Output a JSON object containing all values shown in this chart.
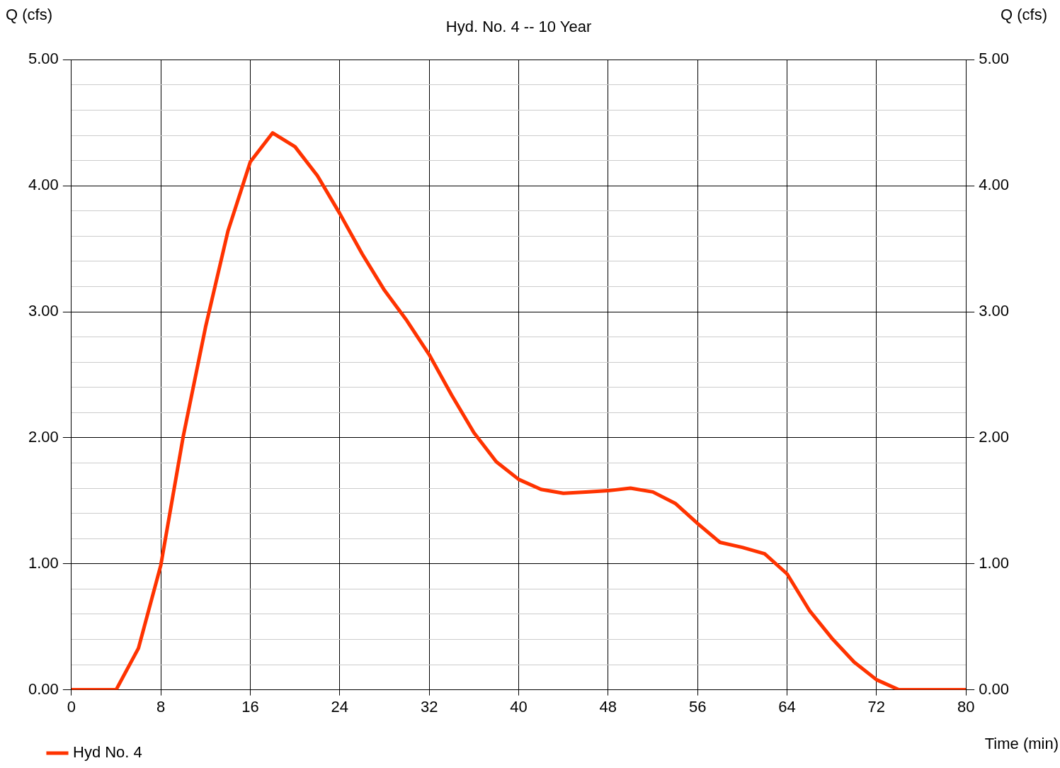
{
  "chart_data": {
    "type": "line",
    "title": "Hyd. No. 4 -- 10 Year",
    "xlabel": "Time (min)",
    "ylabel": "Q (cfs)",
    "y2label": "Q (cfs)",
    "x": [
      0,
      2,
      4,
      6,
      8,
      10,
      12,
      14,
      16,
      18,
      20,
      22,
      24,
      26,
      28,
      30,
      32,
      34,
      36,
      38,
      40,
      42,
      44,
      46,
      48,
      50,
      52,
      54,
      56,
      58,
      60,
      62,
      64,
      66,
      68,
      70,
      72,
      74,
      76,
      78,
      80
    ],
    "series": [
      {
        "name": "Hyd No. 4",
        "color": "#ff3300",
        "values": [
          0,
          0,
          0,
          0.33,
          0.99,
          2.01,
          2.88,
          3.64,
          4.19,
          4.42,
          4.31,
          4.08,
          3.78,
          3.46,
          3.17,
          2.93,
          2.66,
          2.34,
          2.04,
          1.81,
          1.67,
          1.59,
          1.56,
          1.57,
          1.58,
          1.6,
          1.57,
          1.48,
          1.32,
          1.17,
          1.13,
          1.08,
          0.92,
          0.63,
          0.41,
          0.22,
          0.08,
          0,
          0,
          0,
          0
        ]
      }
    ],
    "xlim": [
      0,
      80
    ],
    "xticks": [
      0,
      8,
      16,
      24,
      32,
      40,
      48,
      56,
      64,
      72,
      80
    ],
    "ylim": [
      0,
      5
    ],
    "yticks": [
      {
        "value": 0,
        "label": "0.00"
      },
      {
        "value": 0.2,
        "label": null
      },
      {
        "value": 0.4,
        "label": null
      },
      {
        "value": 0.6,
        "label": null
      },
      {
        "value": 0.8,
        "label": null
      },
      {
        "value": 1,
        "label": "1.00"
      },
      {
        "value": 1.2,
        "label": null
      },
      {
        "value": 1.4,
        "label": null
      },
      {
        "value": 1.6,
        "label": null
      },
      {
        "value": 1.8,
        "label": null
      },
      {
        "value": 2,
        "label": "2.00"
      },
      {
        "value": 2.2,
        "label": null
      },
      {
        "value": 2.4,
        "label": null
      },
      {
        "value": 2.6,
        "label": null
      },
      {
        "value": 2.8,
        "label": null
      },
      {
        "value": 3,
        "label": "3.00"
      },
      {
        "value": 3.2,
        "label": null
      },
      {
        "value": 3.4,
        "label": null
      },
      {
        "value": 3.6,
        "label": null
      },
      {
        "value": 3.8,
        "label": null
      },
      {
        "value": 4,
        "label": "4.00"
      },
      {
        "value": 4.2,
        "label": null
      },
      {
        "value": 4.4,
        "label": null
      },
      {
        "value": 4.6,
        "label": null
      },
      {
        "value": 4.8,
        "label": null
      },
      {
        "value": 5,
        "label": "5.00"
      }
    ],
    "y2lim": [
      0,
      5
    ],
    "y2ticks": [
      {
        "value": 0,
        "label": "0.00"
      },
      {
        "value": 1,
        "label": "1.00"
      },
      {
        "value": 2,
        "label": "2.00"
      },
      {
        "value": 3,
        "label": "3.00"
      },
      {
        "value": 4,
        "label": "4.00"
      },
      {
        "value": 5,
        "label": "5.00"
      }
    ],
    "grid": true,
    "legend": "bottom left",
    "marker": "none",
    "line_style": "solid"
  }
}
